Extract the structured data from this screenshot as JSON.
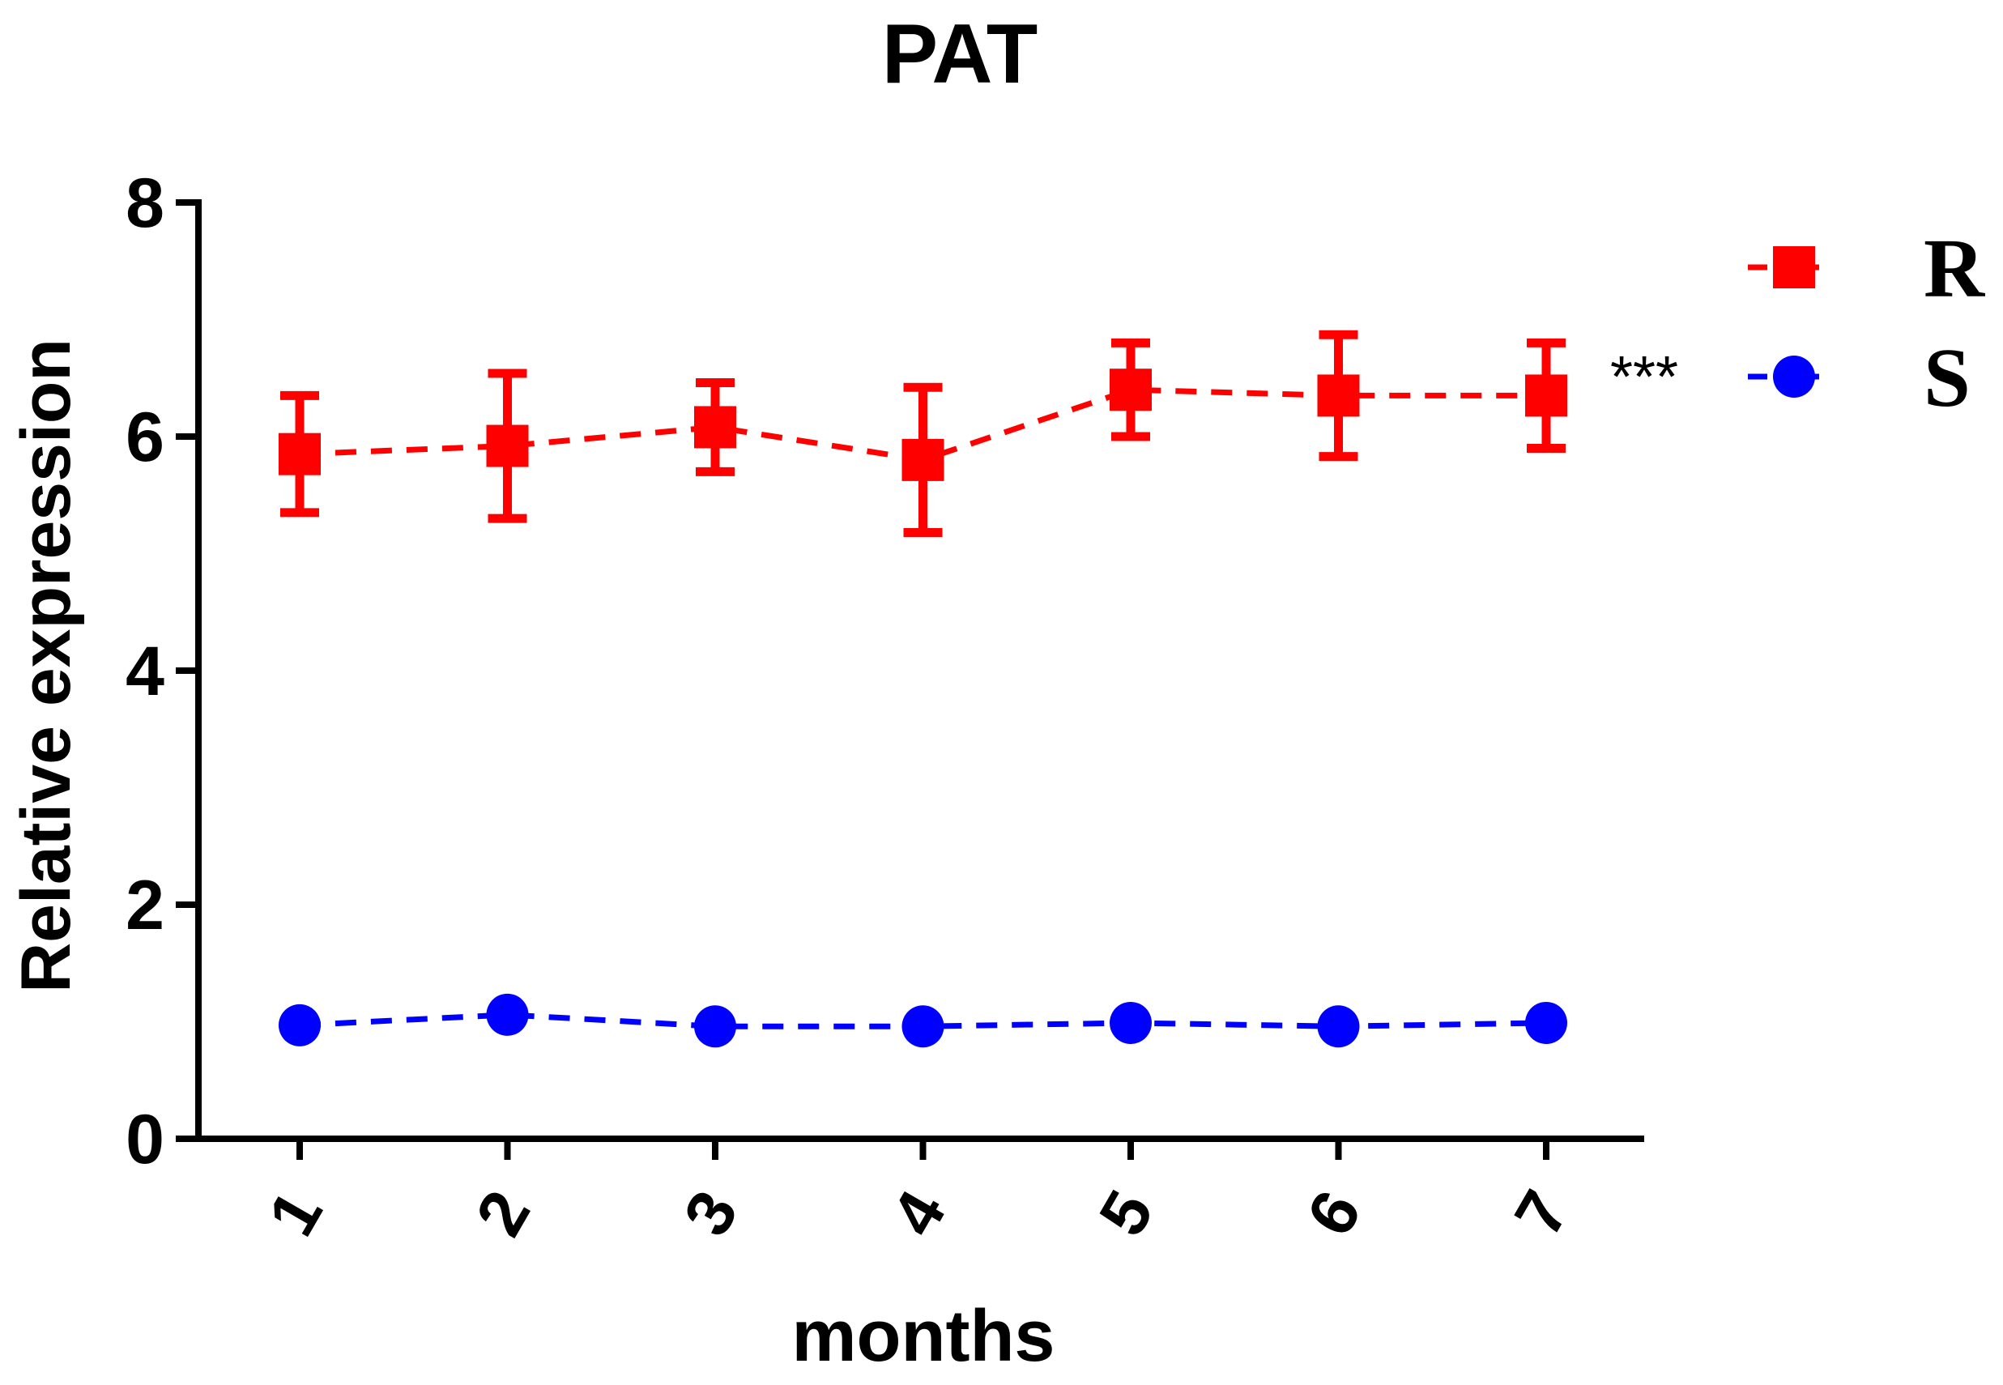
{
  "chart_data": {
    "type": "line",
    "title": "PAT",
    "xlabel": "months",
    "ylabel": "Relative expression",
    "categories": [
      "1",
      "2",
      "3",
      "4",
      "5",
      "6",
      "7"
    ],
    "ylim": [
      0,
      8
    ],
    "yticks": [
      "0",
      "2",
      "4",
      "6",
      "8"
    ],
    "grid": false,
    "legend_position": "top-right",
    "significance_annotation": "***",
    "series": [
      {
        "name": "R",
        "marker": "square",
        "line_style": "dashed",
        "color": "#ff0000",
        "values": [
          5.85,
          5.92,
          6.08,
          5.8,
          6.4,
          6.35,
          6.35
        ],
        "error": [
          0.5,
          0.62,
          0.38,
          0.62,
          0.4,
          0.52,
          0.45
        ]
      },
      {
        "name": "S",
        "marker": "circle",
        "line_style": "dashed",
        "color": "#0000ff",
        "values": [
          0.97,
          1.06,
          0.96,
          0.96,
          0.99,
          0.96,
          0.99
        ],
        "error": [
          0,
          0,
          0,
          0,
          0,
          0,
          0
        ]
      }
    ]
  }
}
